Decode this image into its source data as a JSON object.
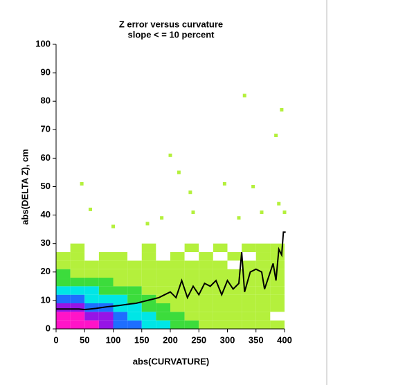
{
  "chart_data": {
    "type": "heatmap",
    "title": "Z error versus curvature",
    "subtitle": "slope < = 10 percent",
    "xlabel": "abs(CURVATURE)",
    "ylabel": "abs(DELTA Z), cm",
    "xlim": [
      0,
      400
    ],
    "ylim": [
      0,
      100
    ],
    "xticks": [
      0,
      50,
      100,
      150,
      200,
      250,
      300,
      350,
      400
    ],
    "yticks": [
      0,
      10,
      20,
      30,
      40,
      50,
      60,
      70,
      80,
      90,
      100
    ],
    "palette": [
      "#ffffff",
      "#b4f03c",
      "#3cdc3c",
      "#00e6e6",
      "#1e6eff",
      "#9614e6",
      "#ff14c8"
    ],
    "x_bins": [
      0,
      25,
      50,
      75,
      100,
      125,
      150,
      175,
      200,
      225,
      250,
      275,
      300,
      325,
      350,
      375,
      400
    ],
    "y_bins": [
      0,
      3,
      6,
      9,
      12,
      15,
      18,
      21,
      24,
      27,
      30
    ],
    "counts": [
      [
        6,
        6,
        6,
        5,
        4,
        4,
        3,
        3,
        2,
        2,
        1,
        1,
        1,
        1,
        1,
        1
      ],
      [
        6,
        6,
        5,
        5,
        4,
        3,
        3,
        2,
        2,
        1,
        1,
        1,
        1,
        1,
        1,
        0
      ],
      [
        5,
        5,
        4,
        4,
        3,
        3,
        2,
        2,
        1,
        1,
        1,
        1,
        1,
        1,
        1,
        1
      ],
      [
        4,
        4,
        3,
        3,
        3,
        2,
        2,
        1,
        1,
        1,
        1,
        1,
        1,
        1,
        1,
        1
      ],
      [
        3,
        3,
        3,
        2,
        2,
        2,
        1,
        1,
        1,
        1,
        1,
        1,
        1,
        1,
        1,
        1
      ],
      [
        2,
        2,
        2,
        2,
        1,
        1,
        1,
        1,
        1,
        1,
        1,
        1,
        1,
        1,
        1,
        1
      ],
      [
        2,
        1,
        1,
        1,
        1,
        1,
        1,
        1,
        1,
        1,
        1,
        1,
        1,
        1,
        1,
        1
      ],
      [
        1,
        1,
        1,
        1,
        1,
        1,
        1,
        1,
        1,
        1,
        1,
        1,
        0,
        1,
        1,
        1
      ],
      [
        1,
        1,
        0,
        1,
        1,
        0,
        1,
        0,
        1,
        0,
        1,
        0,
        1,
        0,
        1,
        1
      ],
      [
        0,
        1,
        0,
        0,
        0,
        0,
        1,
        0,
        0,
        1,
        0,
        1,
        0,
        1,
        1,
        1
      ]
    ],
    "outliers": {
      "color": "#b4f03c",
      "x": [
        45,
        200,
        215,
        235,
        295,
        330,
        345,
        385,
        395,
        240,
        320,
        360,
        390,
        400,
        100,
        60,
        160,
        185
      ],
      "y": [
        51,
        61,
        55,
        48,
        51,
        82,
        50,
        68,
        77,
        41,
        39,
        41,
        44,
        41,
        36,
        42,
        37,
        39
      ]
    },
    "mean_line": {
      "color": "#000000",
      "x": [
        0,
        10,
        20,
        30,
        40,
        50,
        60,
        70,
        80,
        90,
        100,
        110,
        120,
        130,
        140,
        150,
        160,
        170,
        180,
        190,
        200,
        210,
        220,
        230,
        240,
        250,
        260,
        270,
        280,
        290,
        300,
        310,
        320,
        325,
        330,
        340,
        350,
        360,
        365,
        370,
        380,
        385,
        390,
        395,
        398,
        402
      ],
      "y": [
        7,
        7,
        7,
        7,
        7,
        6.8,
        7,
        7.2,
        7.5,
        7.8,
        8,
        8.2,
        8.5,
        8.8,
        9,
        9.5,
        10,
        10.5,
        11,
        12,
        13,
        11,
        17,
        11,
        15,
        12,
        16,
        15,
        17,
        12,
        17,
        14,
        16,
        27,
        13,
        20,
        21,
        20,
        14,
        17,
        23,
        17,
        28,
        26,
        34,
        34
      ]
    }
  }
}
